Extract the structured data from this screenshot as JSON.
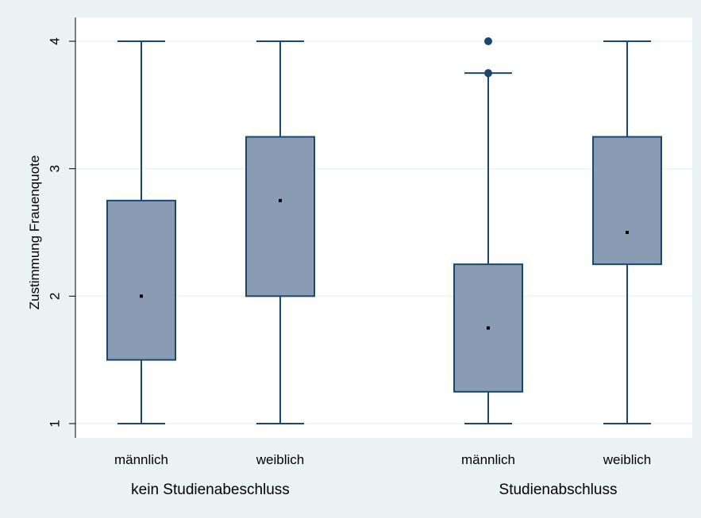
{
  "chart_data": {
    "type": "box",
    "title": "",
    "ylabel": "Zustimmung Frauenquote",
    "ylim": [
      1,
      4
    ],
    "yticks": [
      "1",
      "2",
      "3",
      "4"
    ],
    "ytick_values": [
      1,
      2,
      3,
      4
    ],
    "grid": true,
    "groups": [
      {
        "label": "kein Studienabeschluss",
        "boxes": [
          {
            "label": "männlich",
            "whisker_low": 1,
            "q1": 1.5,
            "median": 2.0,
            "q3": 2.75,
            "whisker_high": 4,
            "outliers": []
          },
          {
            "label": "weiblich",
            "whisker_low": 1,
            "q1": 2.0,
            "median": 2.75,
            "q3": 3.25,
            "whisker_high": 4,
            "outliers": []
          }
        ]
      },
      {
        "label": "Studienabschluss",
        "boxes": [
          {
            "label": "männlich",
            "whisker_low": 1,
            "q1": 1.25,
            "median": 1.75,
            "q3": 2.25,
            "whisker_high": 3.75,
            "outliers": [
              3.75,
              4.0
            ]
          },
          {
            "label": "weiblich",
            "whisker_low": 1,
            "q1": 2.25,
            "median": 2.5,
            "q3": 3.25,
            "whisker_high": 4,
            "outliers": []
          }
        ]
      }
    ],
    "colors": {
      "background": "#eaf2f3",
      "plot_background": "#ffffff",
      "box_fill": "#8a9cb3",
      "box_stroke": "#1a476f",
      "grid": "#eaf2f3",
      "outlier": "#1a476f",
      "text": "#000000"
    }
  }
}
